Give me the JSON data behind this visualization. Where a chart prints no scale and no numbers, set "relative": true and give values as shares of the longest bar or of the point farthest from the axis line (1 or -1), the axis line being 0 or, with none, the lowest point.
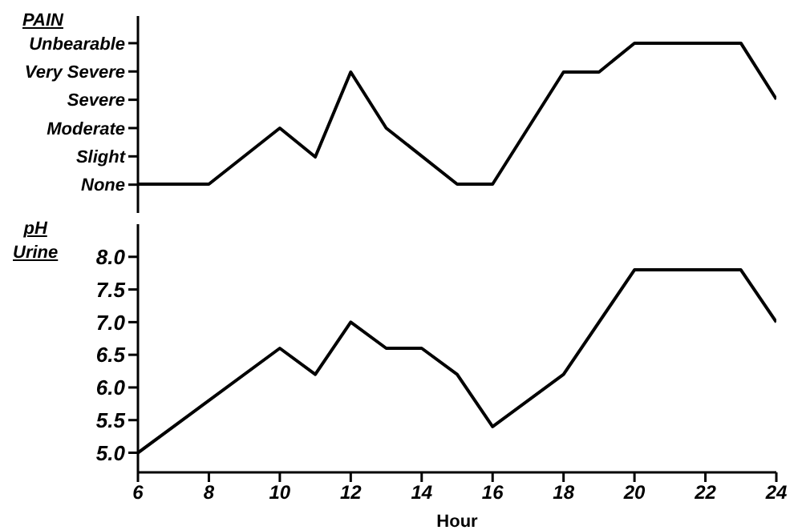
{
  "chart_data": [
    {
      "type": "line",
      "ylabel": "PAIN",
      "relative": true,
      "x": [
        6,
        8,
        10,
        11,
        12,
        13,
        15,
        16,
        18,
        19,
        20,
        23,
        24
      ],
      "series": [
        {
          "color": "#000000",
          "values": [
            0.17,
            0.17,
            0.5,
            0.33,
            0.83,
            0.5,
            0.17,
            0.17,
            0.83,
            0.83,
            1,
            1,
            0.67
          ]
        }
      ],
      "annotations": [
        "None",
        "Slight",
        "Moderate",
        "Severe",
        "Very Severe",
        "Unbearable"
      ],
      "xlim": [
        6,
        24
      ],
      "xticks": [
        6,
        8,
        10,
        12,
        14,
        16,
        18,
        20,
        22,
        24
      ],
      "tick_labels": "y",
      "grid": false,
      "legend": false,
      "marker": "none",
      "line_style": "solid"
    },
    {
      "type": "line",
      "xlabel": "Hour",
      "ylabel": "pH Urine",
      "x": [
        6,
        10,
        11,
        12,
        13,
        14,
        15,
        16,
        18,
        20,
        23,
        24
      ],
      "series": [
        {
          "color": "#000000",
          "values": [
            5.0,
            6.6,
            6.2,
            7.0,
            6.6,
            6.6,
            6.2,
            5.4,
            6.2,
            7.8,
            7.8,
            7.0
          ]
        }
      ],
      "xlim": [
        6,
        24
      ],
      "xticks": [
        6,
        8,
        10,
        12,
        14,
        16,
        18,
        20,
        22,
        24
      ],
      "ylim": [
        4.7,
        8.5
      ],
      "yticks": [
        {
          "value": 5,
          "label": "5.0"
        },
        5.5,
        {
          "value": 6,
          "label": "6.0"
        },
        6.5,
        {
          "value": 7,
          "label": "7.0"
        },
        7.5,
        {
          "value": 8,
          "label": "8.0"
        }
      ],
      "grid": false,
      "legend": false,
      "marker": "none",
      "line_style": "solid"
    }
  ]
}
